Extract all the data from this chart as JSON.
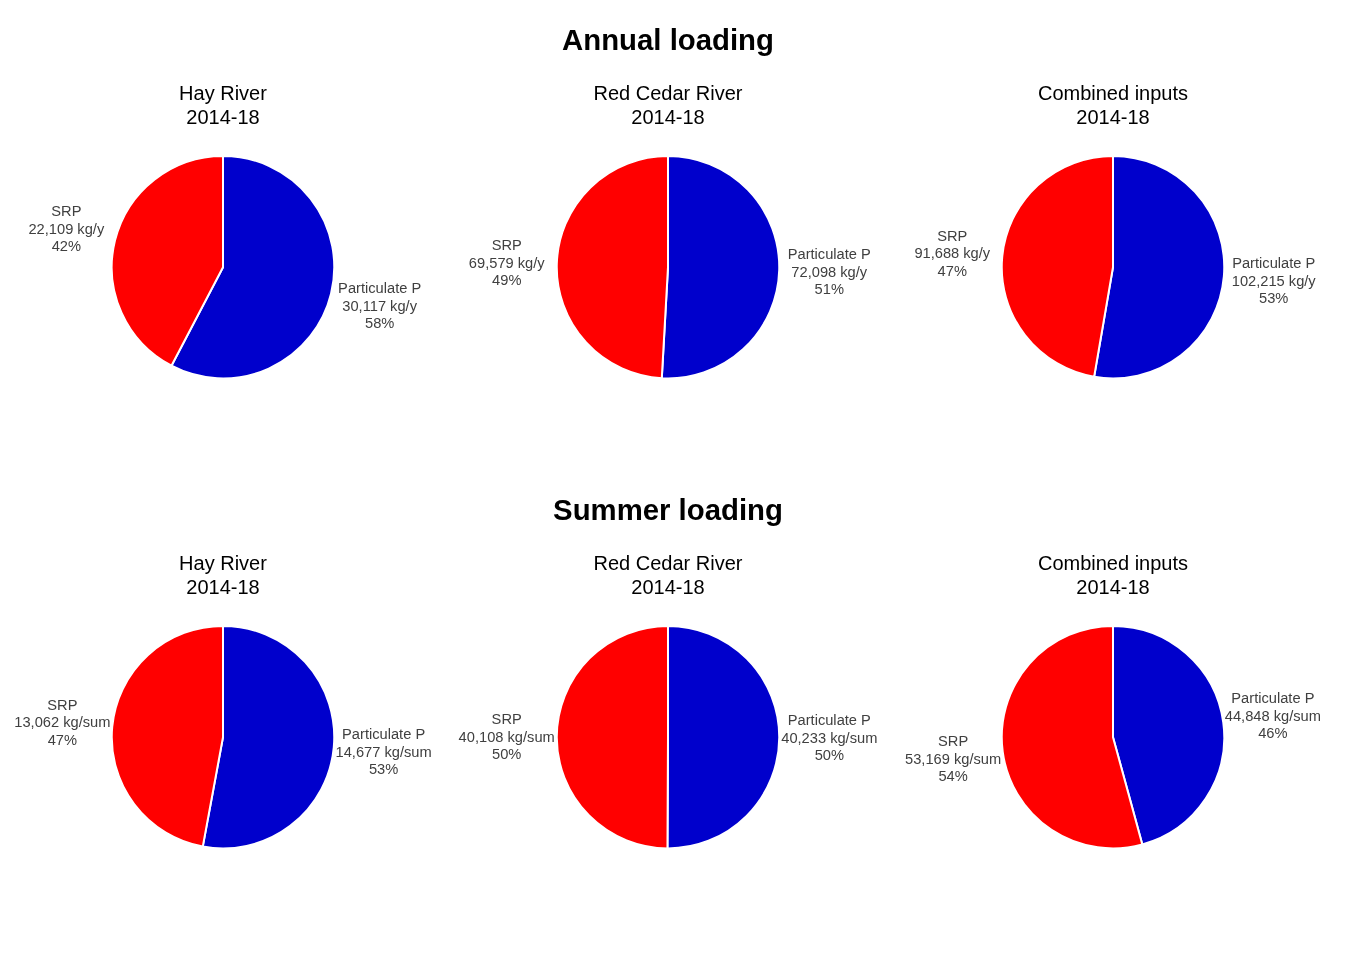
{
  "chart_data": [
    {
      "type": "pie",
      "title": "Hay River\n2014-18",
      "categories": [
        "Particulate P",
        "SRP"
      ],
      "values": [
        30117,
        22109
      ],
      "colors": [
        "#0000cc",
        "#ff0000"
      ],
      "value_labels": [
        "30,117 kg/y\n58%",
        "22,109 kg/y\n42%"
      ]
    },
    {
      "type": "pie",
      "title": "Red Cedar River\n2014-18",
      "annotations": [
        "Annual loading"
      ],
      "categories": [
        "Particulate P",
        "SRP"
      ],
      "values": [
        72098,
        69579
      ],
      "colors": [
        "#0000cc",
        "#ff0000"
      ],
      "value_labels": [
        "72,098 kg/y\n51%",
        "69,579 kg/y\n49%"
      ]
    },
    {
      "type": "pie",
      "title": "Combined inputs\n2014-18",
      "categories": [
        "Particulate P",
        "SRP"
      ],
      "values": [
        102215,
        91688
      ],
      "colors": [
        "#0000cc",
        "#ff0000"
      ],
      "value_labels": [
        "102,215 kg/y\n53%",
        "91,688 kg/y\n47%"
      ]
    },
    {
      "type": "pie",
      "title": "Hay River\n2014-18",
      "categories": [
        "Particulate P",
        "SRP"
      ],
      "values": [
        14677,
        13062
      ],
      "colors": [
        "#0000cc",
        "#ff0000"
      ],
      "value_labels": [
        "14,677 kg/sum\n53%",
        "13,062 kg/sum\n47%"
      ]
    },
    {
      "type": "pie",
      "title": "Red Cedar River\n2014-18",
      "annotations": [
        "Summer loading"
      ],
      "categories": [
        "Particulate P",
        "SRP"
      ],
      "values": [
        40233,
        40108
      ],
      "colors": [
        "#0000cc",
        "#ff0000"
      ],
      "value_labels": [
        "40,233 kg/sum\n50%",
        "40,108 kg/sum\n50%"
      ]
    },
    {
      "type": "pie",
      "title": "Combined inputs\n2014-18",
      "categories": [
        "Particulate P",
        "SRP"
      ],
      "values": [
        44848,
        53169
      ],
      "colors": [
        "#0000cc",
        "#ff0000"
      ],
      "value_labels": [
        "44,848 kg/sum\n46%",
        "53,169 kg/sum\n54%"
      ]
    }
  ]
}
